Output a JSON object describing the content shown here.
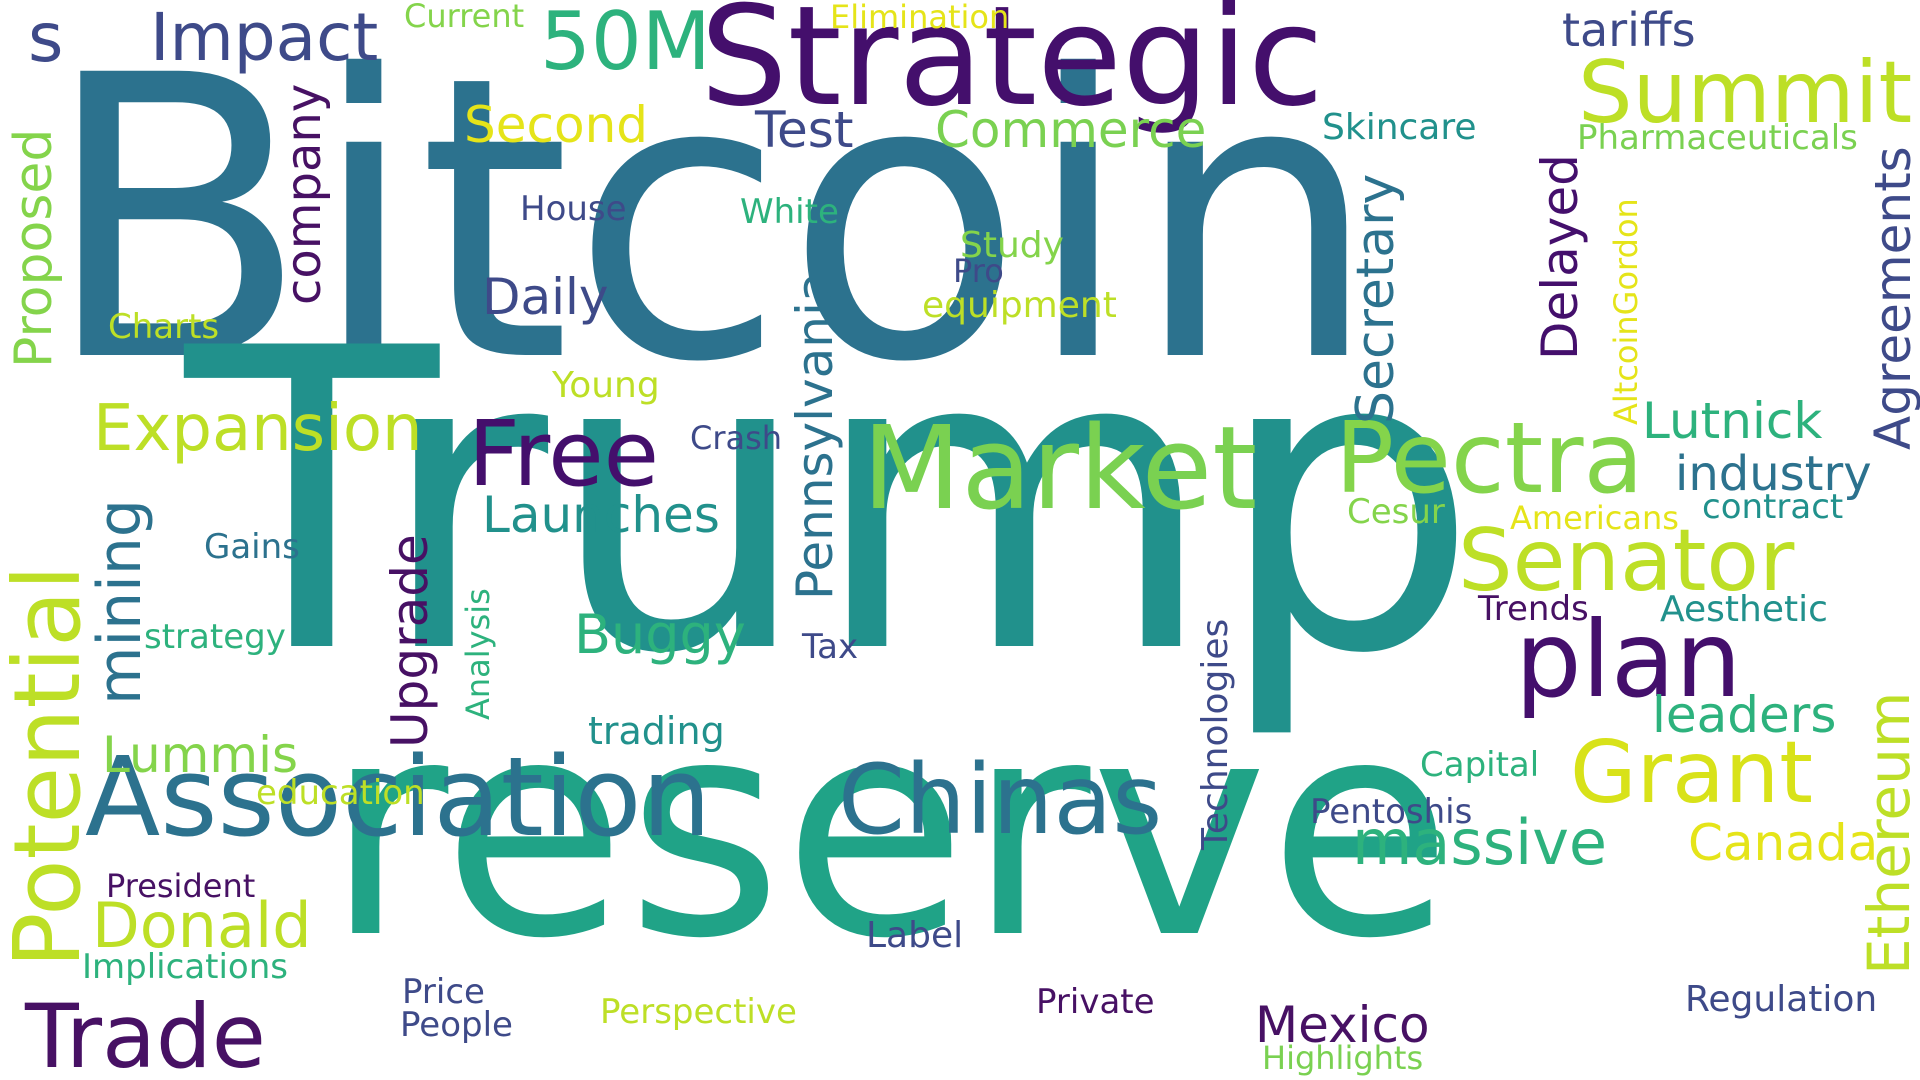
{
  "palette": {
    "purple": "#46196e",
    "indigo": "#3b3b85",
    "blue": "#2e6f8e",
    "teal": "#21908c",
    "green": "#2fb47c",
    "lightgreen": "#7ad151",
    "lime": "#bddf26",
    "yellow": "#e5e419"
  },
  "words": {
    "bitcoin": "Bitcoin",
    "trump": "Trump",
    "reserve": "reserve",
    "strategic": "Strategic",
    "summit": "Summit",
    "market": "Market",
    "pectra": "Pectra",
    "senator": "Senator",
    "plan": "plan",
    "grant": "Grant",
    "association": "Association",
    "chinas": "Chinas",
    "potential": "Potential",
    "trade": "Trade",
    "donald": "Donald",
    "expansion": "Expansion",
    "free": "Free",
    "fifty_m": "50M",
    "impact": "Impact",
    "s": "s",
    "tariffs": "tariffs",
    "current": "Current",
    "elimination": "Elimination",
    "second": "Second",
    "test": "Test",
    "commerce": "Commerce",
    "skincare": "Skincare",
    "pharmaceuticals": "Pharmaceuticals",
    "agreements": "Agreements",
    "delayed": "Delayed",
    "altcoingordon": "AltcoinGordon",
    "secretary": "Secretary",
    "company": "company",
    "proposed": "Proposed",
    "charts": "Charts",
    "house": "House",
    "white": "White",
    "study": "Study",
    "pro": "Pro",
    "equipment": "equipment",
    "daily": "Daily",
    "young": "Young",
    "pennsylvania": "Pennsylvania",
    "lutnick": "Lutnick",
    "industry": "industry",
    "contract": "contract",
    "cesur": "Cesur",
    "americans": "Americans",
    "crash": "Crash",
    "launches": "Launches",
    "mining": "mining",
    "gains": "Gains",
    "upgrade": "Upgrade",
    "analysis": "Analysis",
    "strategy": "strategy",
    "buggy": "Buggy",
    "tax": "Tax",
    "trends": "Trends",
    "aesthetic": "Aesthetic",
    "technologies": "Technologies",
    "ethereum": "Ethereum",
    "leaders": "leaders",
    "trading": "trading",
    "lummis": "Lummis",
    "education": "education",
    "capital": "Capital",
    "pentoshis": "Pentoshis",
    "massive": "massive",
    "canada": "Canada",
    "president": "President",
    "implications": "Implications",
    "label": "Label",
    "price": "Price",
    "people": "People",
    "perspective": "Perspective",
    "private": "Private",
    "mexico": "Mexico",
    "highlights": "Highlights",
    "regulation": "Regulation"
  }
}
